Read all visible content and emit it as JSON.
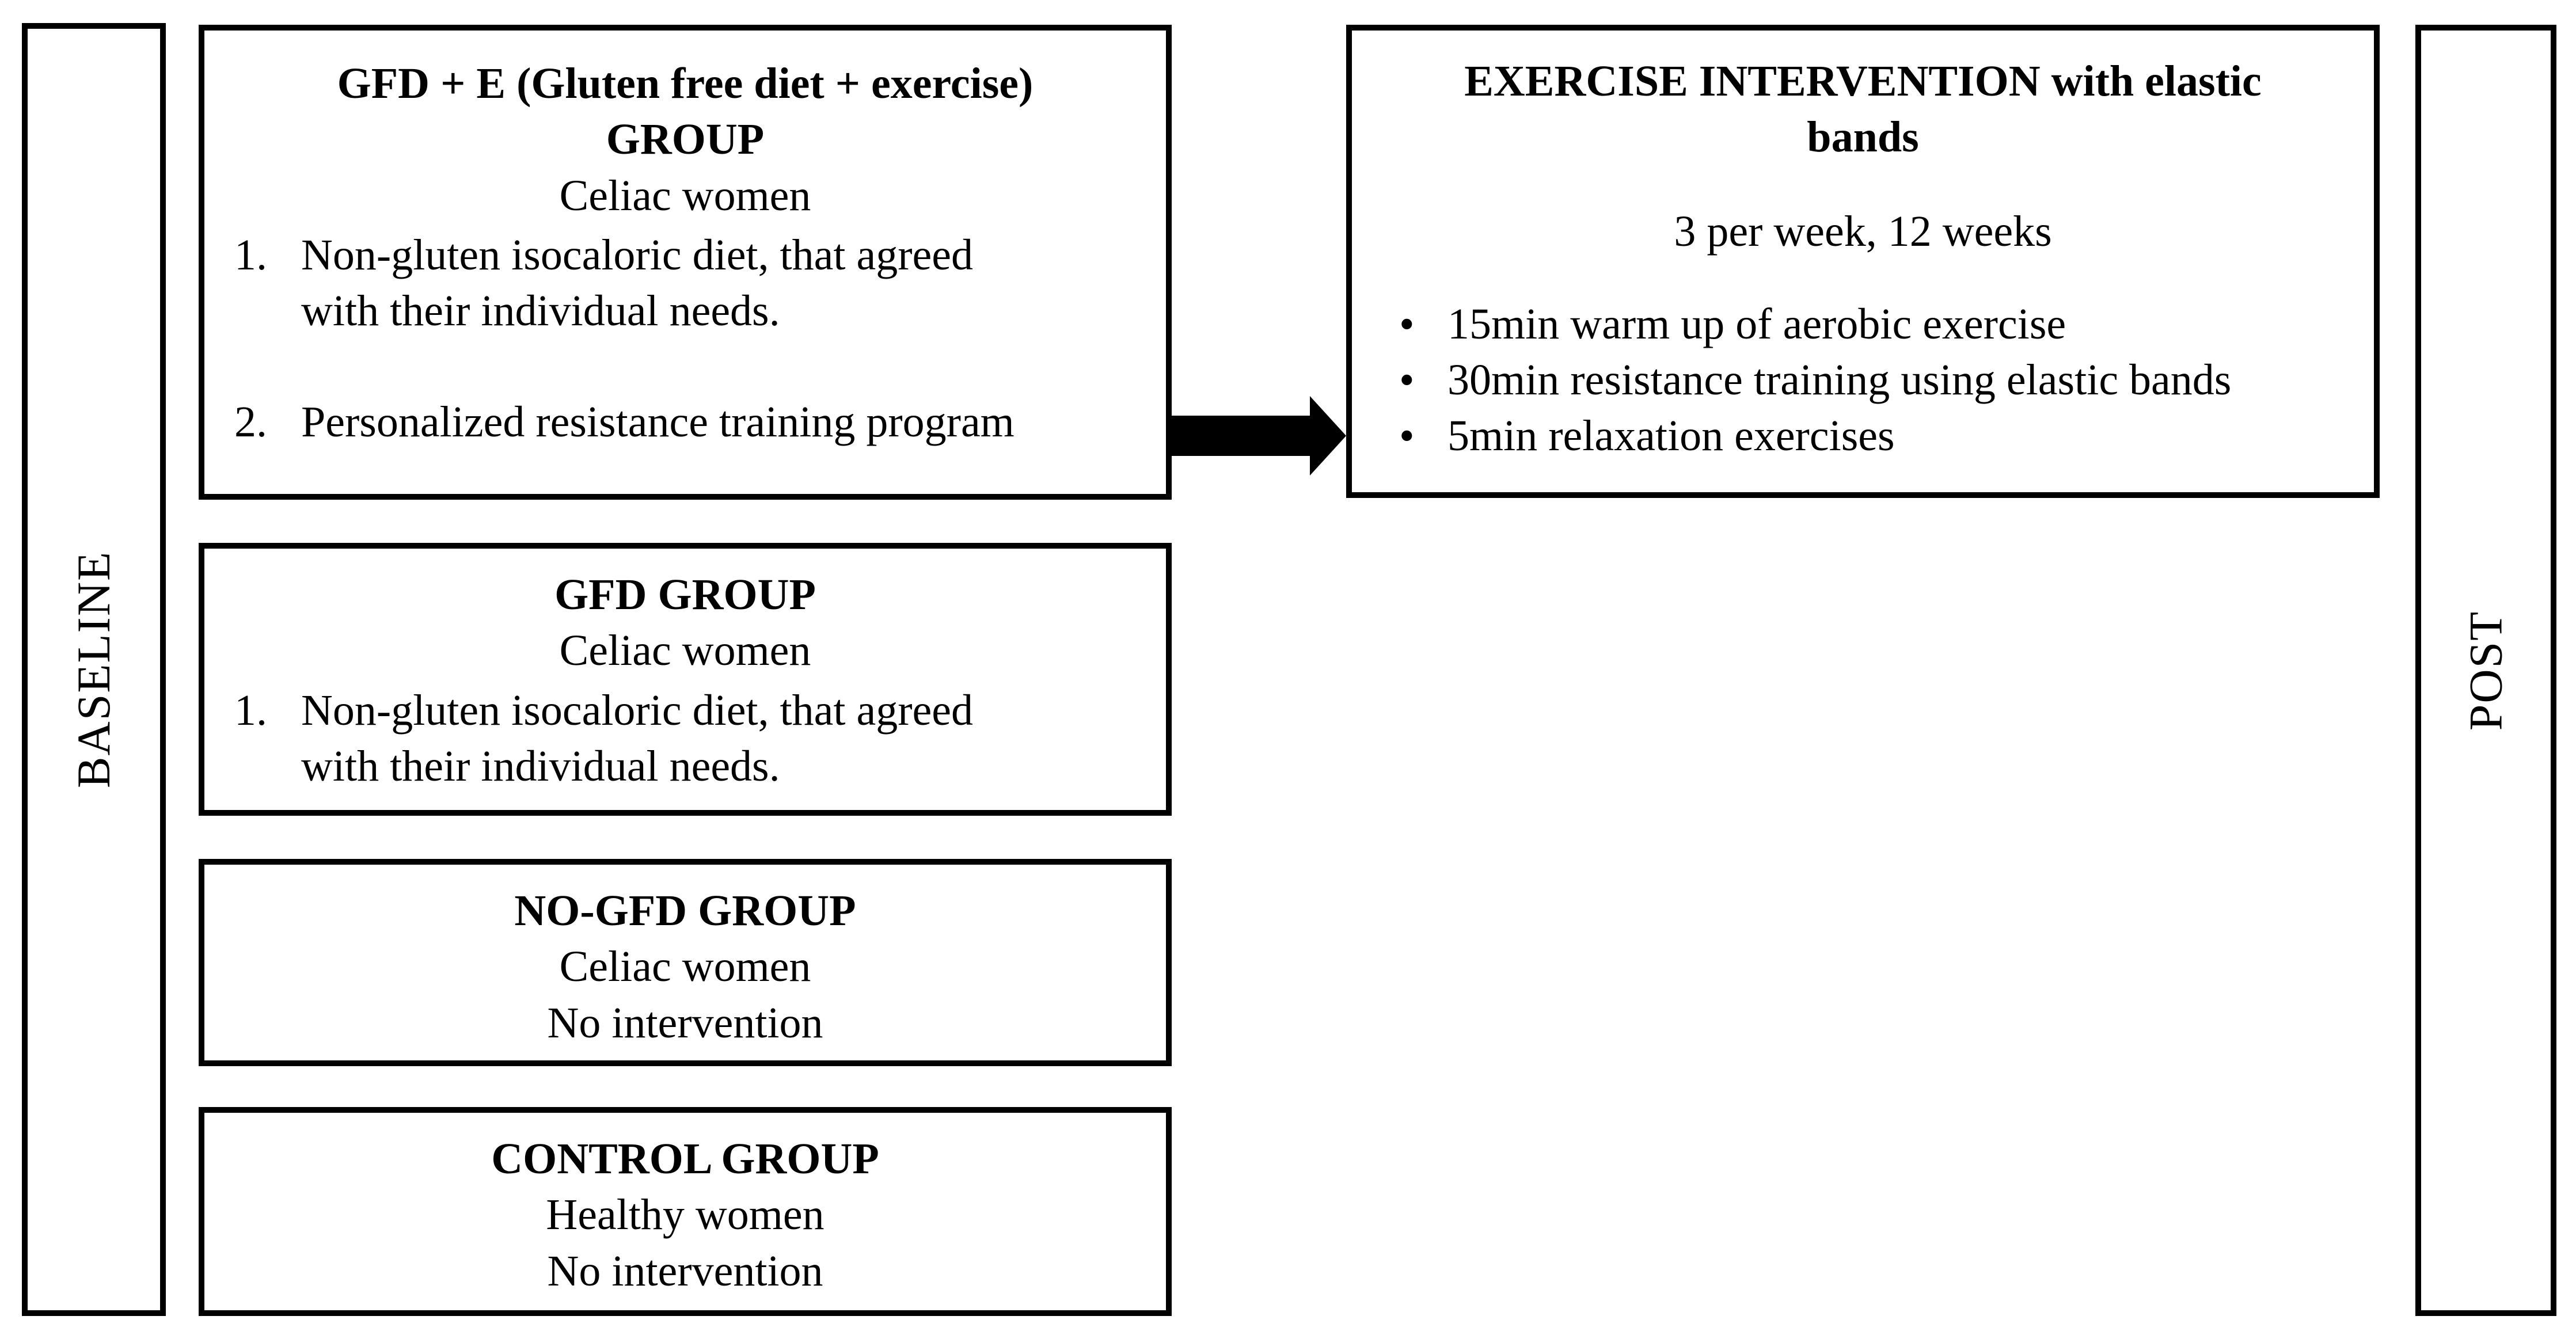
{
  "colors": {
    "background": "#ffffff",
    "border": "#000000",
    "text": "#000000",
    "arrow": "#000000"
  },
  "bullet_char": "•",
  "labels": {
    "baseline": "BASELINE",
    "post": "POST"
  },
  "group_boxes": [
    {
      "title_lines": [
        "GFD + E (Gluten free diet + exercise)",
        "GROUP"
      ],
      "subtitle": "Celiac women",
      "list": [
        {
          "marker": "1.",
          "lines": [
            "Non-gluten isocaloric diet, that agreed",
            "with their individual needs."
          ]
        },
        {
          "marker": "2.",
          "lines": [
            "Personalized resistance training program"
          ]
        }
      ]
    },
    {
      "title_lines": [
        "GFD GROUP"
      ],
      "subtitle": "Celiac women",
      "list": [
        {
          "marker": "1.",
          "lines": [
            "Non-gluten isocaloric diet, that agreed",
            "with their individual needs."
          ]
        }
      ]
    },
    {
      "title_lines": [
        "NO-GFD GROUP"
      ],
      "subtitle": "Celiac women",
      "note": "No intervention"
    },
    {
      "title_lines": [
        "CONTROL GROUP"
      ],
      "subtitle": "Healthy women",
      "note": "No intervention"
    }
  ],
  "intervention_box": {
    "title_lines": [
      "EXERCISE INTERVENTION with elastic",
      "bands"
    ],
    "schedule": "3 per week, 12 weeks",
    "bullets": [
      "15min warm up of aerobic exercise",
      "30min resistance training using elastic bands",
      "5min relaxation exercises"
    ]
  }
}
